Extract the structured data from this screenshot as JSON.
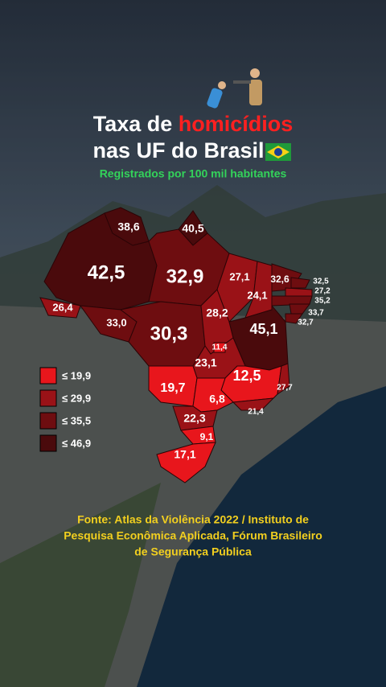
{
  "header": {
    "title_start": "Taxa de",
    "title_highlight": "homicídios",
    "title_line2": "nas UF do Brasil",
    "subtitle": "Registrados por 100 mil habitantes"
  },
  "regions": [
    {
      "label": "42,5",
      "color": "#4a0a0c"
    },
    {
      "label": "38,6",
      "color": "#4a0a0c"
    },
    {
      "label": "40,5",
      "color": "#4a0a0c"
    },
    {
      "label": "32,9",
      "color": "#6e0d10"
    },
    {
      "label": "26,4",
      "color": "#9a1217"
    },
    {
      "label": "33,0",
      "color": "#6e0d10"
    },
    {
      "label": "30,3",
      "color": "#6e0d10"
    },
    {
      "label": "27,1",
      "color": "#9a1217"
    },
    {
      "label": "24,1",
      "color": "#9a1217"
    },
    {
      "label": "32,6",
      "color": "#6e0d10"
    },
    {
      "label": "32,5",
      "color": "#6e0d10"
    },
    {
      "label": "27,2",
      "color": "#9a1217"
    },
    {
      "label": "35,2",
      "color": "#6e0d10"
    },
    {
      "label": "33,7",
      "color": "#6e0d10"
    },
    {
      "label": "32,7",
      "color": "#6e0d10"
    },
    {
      "label": "28,2",
      "color": "#9a1217"
    },
    {
      "label": "45,1",
      "color": "#4a0a0c"
    },
    {
      "label": "23,1",
      "color": "#9a1217"
    },
    {
      "label": "11,4",
      "color": "#e8161c"
    },
    {
      "label": "12,5",
      "color": "#e8161c"
    },
    {
      "label": "27,7",
      "color": "#9a1217"
    },
    {
      "label": "19,7",
      "color": "#e8161c"
    },
    {
      "label": "6,8",
      "color": "#e8161c"
    },
    {
      "label": "21,4",
      "color": "#9a1217"
    },
    {
      "label": "22,3",
      "color": "#9a1217"
    },
    {
      "label": "9,1",
      "color": "#e8161c"
    },
    {
      "label": "17,1",
      "color": "#e8161c"
    }
  ],
  "legend": [
    {
      "label": "≤ 19,9",
      "color": "#e8161c"
    },
    {
      "label": "≤ 29,9",
      "color": "#9a1217"
    },
    {
      "label": "≤ 35,5",
      "color": "#6e0d10"
    },
    {
      "label": "≤ 46,9",
      "color": "#4a0a0c"
    }
  ],
  "source": [
    "Fonte: Atlas da Violência 2022 / Instituto de",
    "Pesquisa Econômica Aplicada, Fórum Brasileiro",
    "de Segurança Pública"
  ]
}
